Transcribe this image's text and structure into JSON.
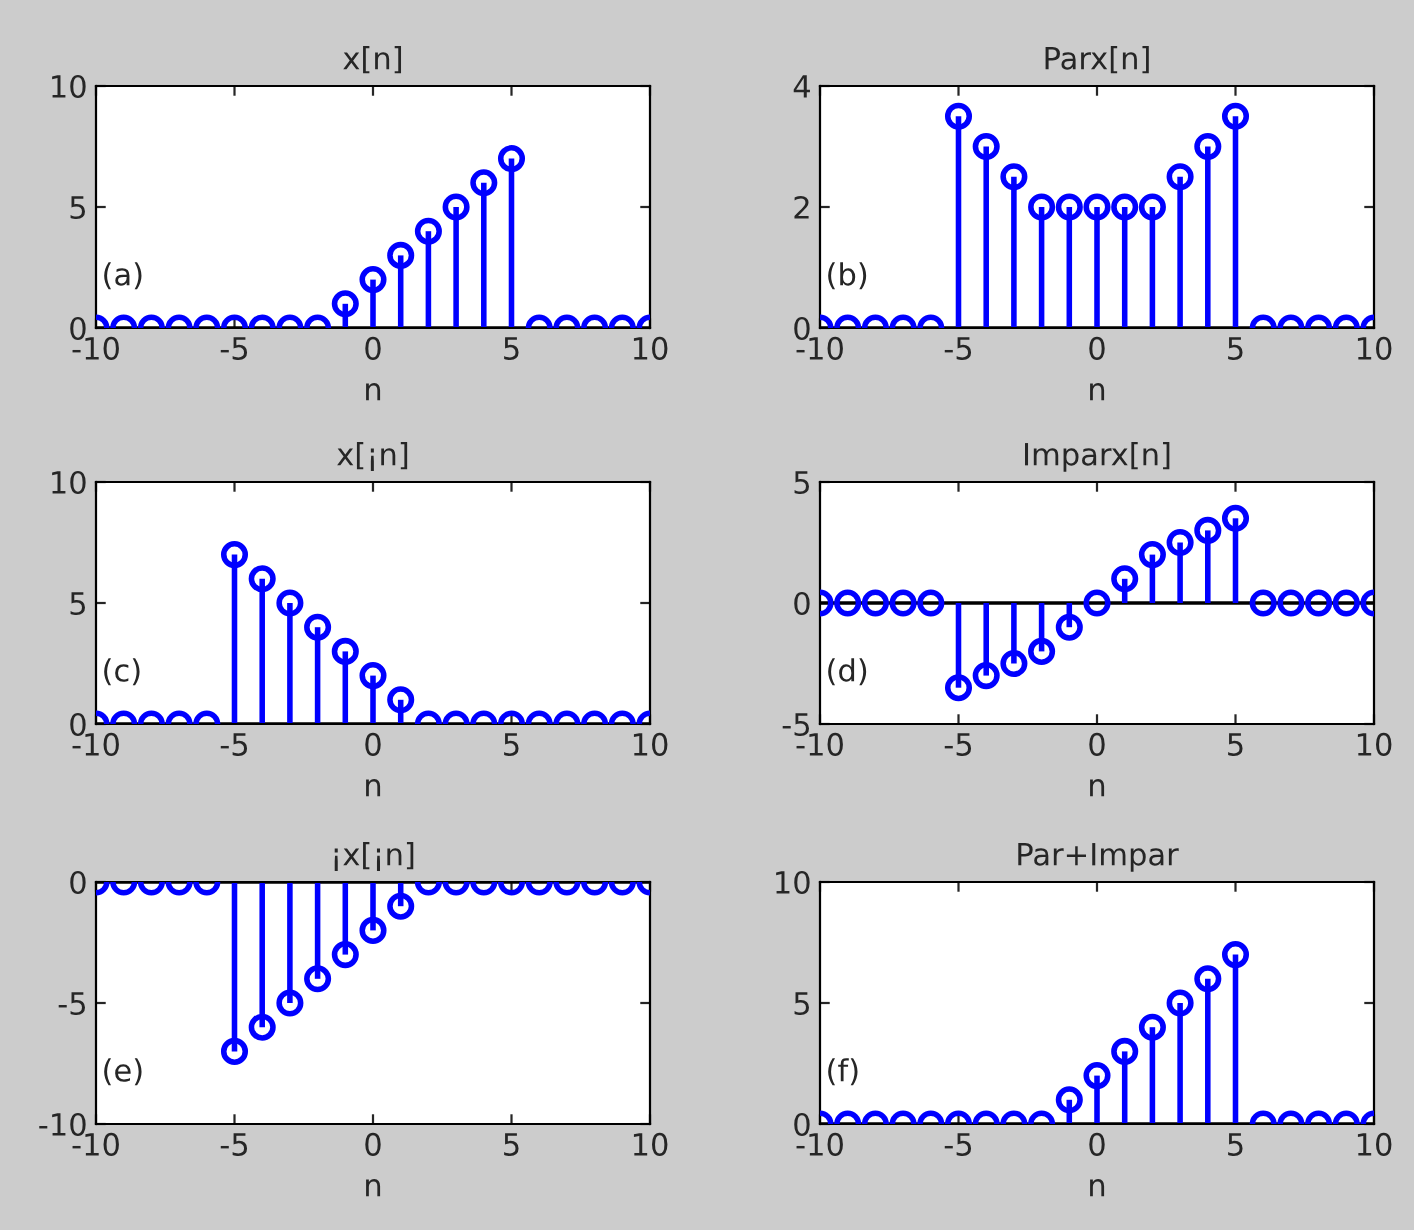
{
  "chart_data": [
    {
      "type": "lollipop",
      "title": "x[n]",
      "xlabel": "n",
      "color": "#0000ff",
      "marker": "circle",
      "annotations": [
        "(a)"
      ],
      "xlim": [
        -10,
        10
      ],
      "ylim": [
        0,
        10
      ],
      "xticks": [
        -10,
        -5,
        0,
        5,
        10
      ],
      "yticks": [
        0,
        5,
        10
      ],
      "x": [
        -10,
        -9,
        -8,
        -7,
        -6,
        -5,
        -4,
        -3,
        -2,
        -1,
        0,
        1,
        2,
        3,
        4,
        5,
        6,
        7,
        8,
        9,
        10
      ],
      "values": [
        0,
        0,
        0,
        0,
        0,
        0,
        0,
        0,
        0,
        1,
        2,
        3,
        4,
        5,
        6,
        7,
        0,
        0,
        0,
        0,
        0
      ]
    },
    {
      "type": "lollipop",
      "title": "Parx[n]",
      "xlabel": "n",
      "color": "#0000ff",
      "marker": "circle",
      "annotations": [
        "(b)"
      ],
      "xlim": [
        -10,
        10
      ],
      "ylim": [
        0,
        4
      ],
      "xticks": [
        -10,
        -5,
        0,
        5,
        10
      ],
      "yticks": [
        0,
        2,
        4
      ],
      "x": [
        -10,
        -9,
        -8,
        -7,
        -6,
        -5,
        -4,
        -3,
        -2,
        -1,
        0,
        1,
        2,
        3,
        4,
        5,
        6,
        7,
        8,
        9,
        10
      ],
      "values": [
        0,
        0,
        0,
        0,
        0,
        3.5,
        3,
        2.5,
        2,
        2,
        2,
        2,
        2,
        2.5,
        3,
        3.5,
        0,
        0,
        0,
        0,
        0
      ]
    },
    {
      "type": "lollipop",
      "title": "x[¡n]",
      "xlabel": "n",
      "color": "#0000ff",
      "marker": "circle",
      "annotations": [
        "(c)"
      ],
      "xlim": [
        -10,
        10
      ],
      "ylim": [
        0,
        10
      ],
      "xticks": [
        -10,
        -5,
        0,
        5,
        10
      ],
      "yticks": [
        0,
        5,
        10
      ],
      "x": [
        -10,
        -9,
        -8,
        -7,
        -6,
        -5,
        -4,
        -3,
        -2,
        -1,
        0,
        1,
        2,
        3,
        4,
        5,
        6,
        7,
        8,
        9,
        10
      ],
      "values": [
        0,
        0,
        0,
        0,
        0,
        7,
        6,
        5,
        4,
        3,
        2,
        1,
        0,
        0,
        0,
        0,
        0,
        0,
        0,
        0,
        0
      ]
    },
    {
      "type": "lollipop",
      "title": "Imparx[n]",
      "xlabel": "n",
      "color": "#0000ff",
      "marker": "circle",
      "annotations": [
        "(d)"
      ],
      "xlim": [
        -10,
        10
      ],
      "ylim": [
        -5,
        5
      ],
      "xticks": [
        -10,
        -5,
        0,
        5,
        10
      ],
      "yticks": [
        -5,
        0,
        5
      ],
      "x": [
        -10,
        -9,
        -8,
        -7,
        -6,
        -5,
        -4,
        -3,
        -2,
        -1,
        0,
        1,
        2,
        3,
        4,
        5,
        6,
        7,
        8,
        9,
        10
      ],
      "values": [
        0,
        0,
        0,
        0,
        0,
        -3.5,
        -3,
        -2.5,
        -2,
        -1,
        0,
        1,
        2,
        2.5,
        3,
        3.5,
        0,
        0,
        0,
        0,
        0
      ]
    },
    {
      "type": "lollipop",
      "title": "¡x[¡n]",
      "xlabel": "n",
      "color": "#0000ff",
      "marker": "circle",
      "annotations": [
        "(e)"
      ],
      "xlim": [
        -10,
        10
      ],
      "ylim": [
        -10,
        0
      ],
      "xticks": [
        -10,
        -5,
        0,
        5,
        10
      ],
      "yticks": [
        -10,
        -5,
        0
      ],
      "x": [
        -10,
        -9,
        -8,
        -7,
        -6,
        -5,
        -4,
        -3,
        -2,
        -1,
        0,
        1,
        2,
        3,
        4,
        5,
        6,
        7,
        8,
        9,
        10
      ],
      "values": [
        0,
        0,
        0,
        0,
        0,
        -7,
        -6,
        -5,
        -4,
        -3,
        -2,
        -1,
        0,
        0,
        0,
        0,
        0,
        0,
        0,
        0,
        0
      ]
    },
    {
      "type": "lollipop",
      "title": "Par+Impar",
      "xlabel": "n",
      "color": "#0000ff",
      "marker": "circle",
      "annotations": [
        "(f)"
      ],
      "xlim": [
        -10,
        10
      ],
      "ylim": [
        0,
        10
      ],
      "xticks": [
        -10,
        -5,
        0,
        5,
        10
      ],
      "yticks": [
        0,
        5,
        10
      ],
      "x": [
        -10,
        -9,
        -8,
        -7,
        -6,
        -5,
        -4,
        -3,
        -2,
        -1,
        0,
        1,
        2,
        3,
        4,
        5,
        6,
        7,
        8,
        9,
        10
      ],
      "values": [
        0,
        0,
        0,
        0,
        0,
        0,
        0,
        0,
        0,
        1,
        2,
        3,
        4,
        5,
        6,
        7,
        0,
        0,
        0,
        0,
        0
      ]
    }
  ]
}
